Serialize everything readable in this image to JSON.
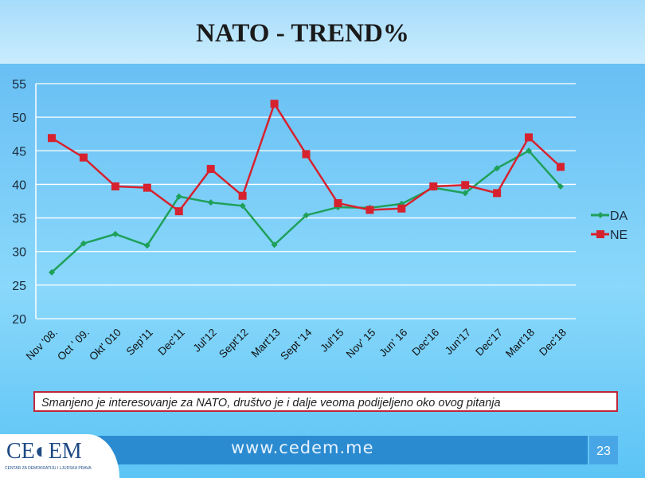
{
  "title": "NATO - TREND%",
  "note": "Smanjeno je interesovanje za NATO, društvo je i dalje veoma podijeljeno oko ovog pitanja",
  "footer": {
    "url": "www.cedem.me",
    "page": "23",
    "logo": "CEDEM",
    "logo_sub": "CENTAR ZA DEMOKRATIJU I LJUDSKA PRAVA"
  },
  "chart_data": {
    "type": "line",
    "categories": [
      "Nov '08.",
      "Oct ' 09.",
      "Okt' 010",
      "Sep'11",
      "Dec'11",
      "Jul'12",
      "Sept'12",
      "Mart'13",
      "Sept '14",
      "Jul'15",
      "Nov' 15",
      "Jun' 16",
      "Dec'16",
      "Jun'17",
      "Dec'17",
      "Mart'18",
      "Dec'18"
    ],
    "ylim": [
      20,
      55
    ],
    "yticks": [
      20,
      25,
      30,
      35,
      40,
      45,
      50,
      55
    ],
    "grid": true,
    "legend": "right",
    "series": [
      {
        "name": "DA",
        "color": "#1fa05a",
        "marker": "diamond",
        "values": [
          26.9,
          31.2,
          32.6,
          30.9,
          38.2,
          37.3,
          36.8,
          31.0,
          35.4,
          36.6,
          36.5,
          37.1,
          39.5,
          38.7,
          42.4,
          45.0,
          39.7
        ]
      },
      {
        "name": "NE",
        "color": "#d6222e",
        "marker": "square",
        "values": [
          46.9,
          44.0,
          39.7,
          39.5,
          36.0,
          42.3,
          38.3,
          52.0,
          44.5,
          37.2,
          36.2,
          36.4,
          39.7,
          39.9,
          38.7,
          47.0,
          42.6
        ]
      }
    ]
  }
}
